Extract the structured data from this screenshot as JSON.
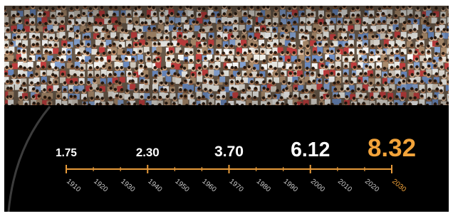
{
  "chart_data": {
    "type": "timeline",
    "x": [
      1910,
      1940,
      1970,
      2000,
      2030
    ],
    "values": [
      1.75,
      2.3,
      3.7,
      6.12,
      8.32
    ],
    "value_labels": [
      "1.75",
      "2.30",
      "3.70",
      "6.12",
      "8.32"
    ],
    "xlim": [
      1910,
      2030
    ],
    "xticks": [
      1910,
      1920,
      1930,
      1940,
      1950,
      1960,
      1970,
      1980,
      1990,
      2000,
      2010,
      2020,
      2030
    ],
    "color": "#ffffff",
    "highlight_color": "#f2a33a",
    "axis_color": "#e89b3a",
    "tick_label_color": "#c8c8c8"
  }
}
